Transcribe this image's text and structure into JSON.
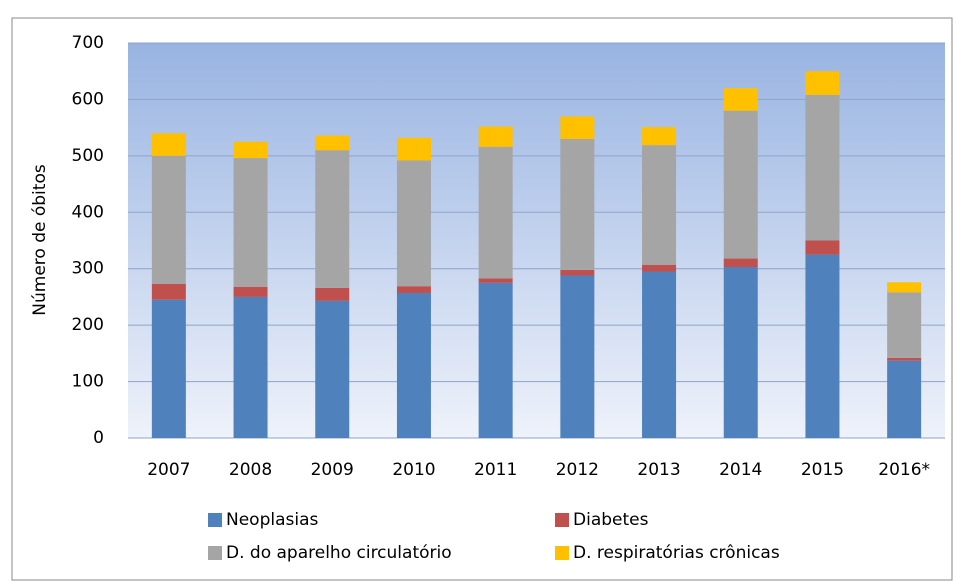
{
  "chart_data": {
    "type": "stacked-bar",
    "y_label": "Número de óbitos",
    "categories": [
      "2007",
      "2008",
      "2009",
      "2010",
      "2011",
      "2012",
      "2013",
      "2014",
      "2015",
      "2016*"
    ],
    "series": [
      {
        "name": "Neoplasias",
        "color": "#4f81bd",
        "values": [
          245,
          250,
          243,
          257,
          275,
          288,
          295,
          303,
          325,
          137
        ]
      },
      {
        "name": "Diabetes",
        "color": "#c0504d",
        "values": [
          28,
          18,
          23,
          12,
          8,
          10,
          12,
          15,
          25,
          5
        ]
      },
      {
        "name": "D. do aparelho circulatório",
        "color": "#a5a5a5",
        "values": [
          227,
          228,
          244,
          223,
          233,
          232,
          212,
          262,
          258,
          116
        ]
      },
      {
        "name": "D. respiratórias crônicas",
        "color": "#ffc000",
        "values": [
          40,
          29,
          26,
          40,
          36,
          40,
          32,
          40,
          42,
          18
        ]
      }
    ],
    "ylim": [
      0,
      700
    ],
    "yticks": [
      0,
      100,
      200,
      300,
      400,
      500,
      600,
      700
    ],
    "grid": true
  }
}
